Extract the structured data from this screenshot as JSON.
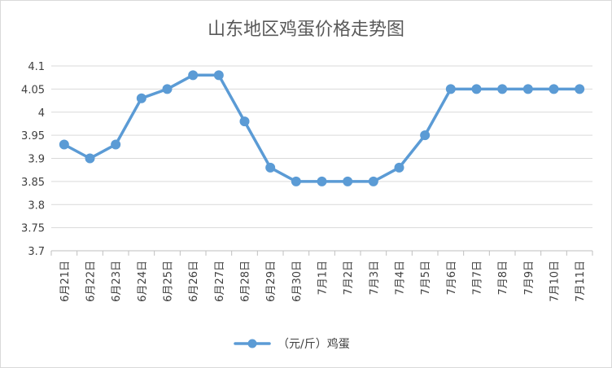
{
  "chart_data": {
    "type": "line",
    "title": "山东地区鸡蛋价格走势图",
    "xlabel": "",
    "ylabel": "",
    "categories": [
      "6月21日",
      "6月22日",
      "6月23日",
      "6月24日",
      "6月25日",
      "6月26日",
      "6月27日",
      "6月28日",
      "6月29日",
      "6月30日",
      "7月1日",
      "7月2日",
      "7月3日",
      "7月4日",
      "7月5日",
      "7月6日",
      "7月7日",
      "7月8日",
      "7月9日",
      "7月10日",
      "7月11日"
    ],
    "series": [
      {
        "name": "（元/斤）鸡蛋",
        "color": "#5b9bd5",
        "values": [
          3.93,
          3.9,
          3.93,
          4.03,
          4.05,
          4.08,
          4.08,
          3.98,
          3.88,
          3.85,
          3.85,
          3.85,
          3.85,
          3.88,
          3.95,
          4.05,
          4.05,
          4.05,
          4.05,
          4.05,
          4.05
        ]
      }
    ],
    "ylim": [
      3.7,
      4.1
    ],
    "yticks": [
      "3.7",
      "3.75",
      "3.8",
      "3.85",
      "3.9",
      "3.95",
      "4",
      "4.05",
      "4.1"
    ],
    "grid": true,
    "legend": "bottom"
  }
}
